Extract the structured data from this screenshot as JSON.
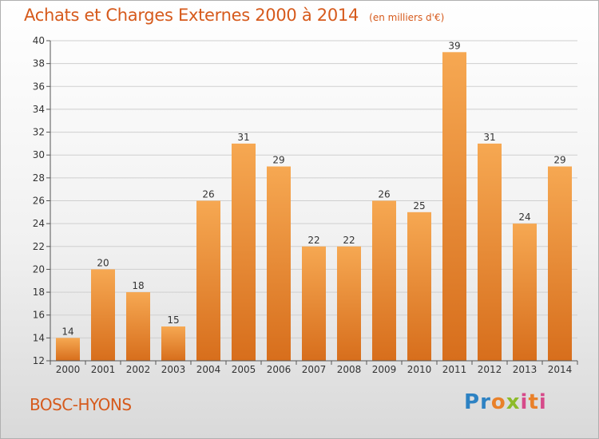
{
  "title": {
    "main": "Achats et Charges Externes 2000 à 2014",
    "unit": "(en milliers d'€)"
  },
  "commune": "BOSC-HYONS",
  "logo": {
    "text": "Proxiti"
  },
  "colors": {
    "title": "#d65a1c",
    "bar_top": "#f6a852",
    "bar_bottom": "#d76e1c",
    "grid": "#cfcfcf",
    "axis": "#555555"
  },
  "chart_data": {
    "type": "bar",
    "categories": [
      "2000",
      "2001",
      "2002",
      "2003",
      "2004",
      "2005",
      "2006",
      "2007",
      "2008",
      "2009",
      "2010",
      "2011",
      "2012",
      "2013",
      "2014"
    ],
    "values": [
      14,
      20,
      18,
      15,
      26,
      31,
      29,
      22,
      22,
      26,
      25,
      39,
      31,
      24,
      29
    ],
    "ylim": [
      12,
      40
    ],
    "yticks": [
      12,
      14,
      16,
      18,
      20,
      22,
      24,
      26,
      28,
      30,
      32,
      34,
      36,
      38,
      40
    ],
    "grid": true,
    "data_labels": true
  }
}
